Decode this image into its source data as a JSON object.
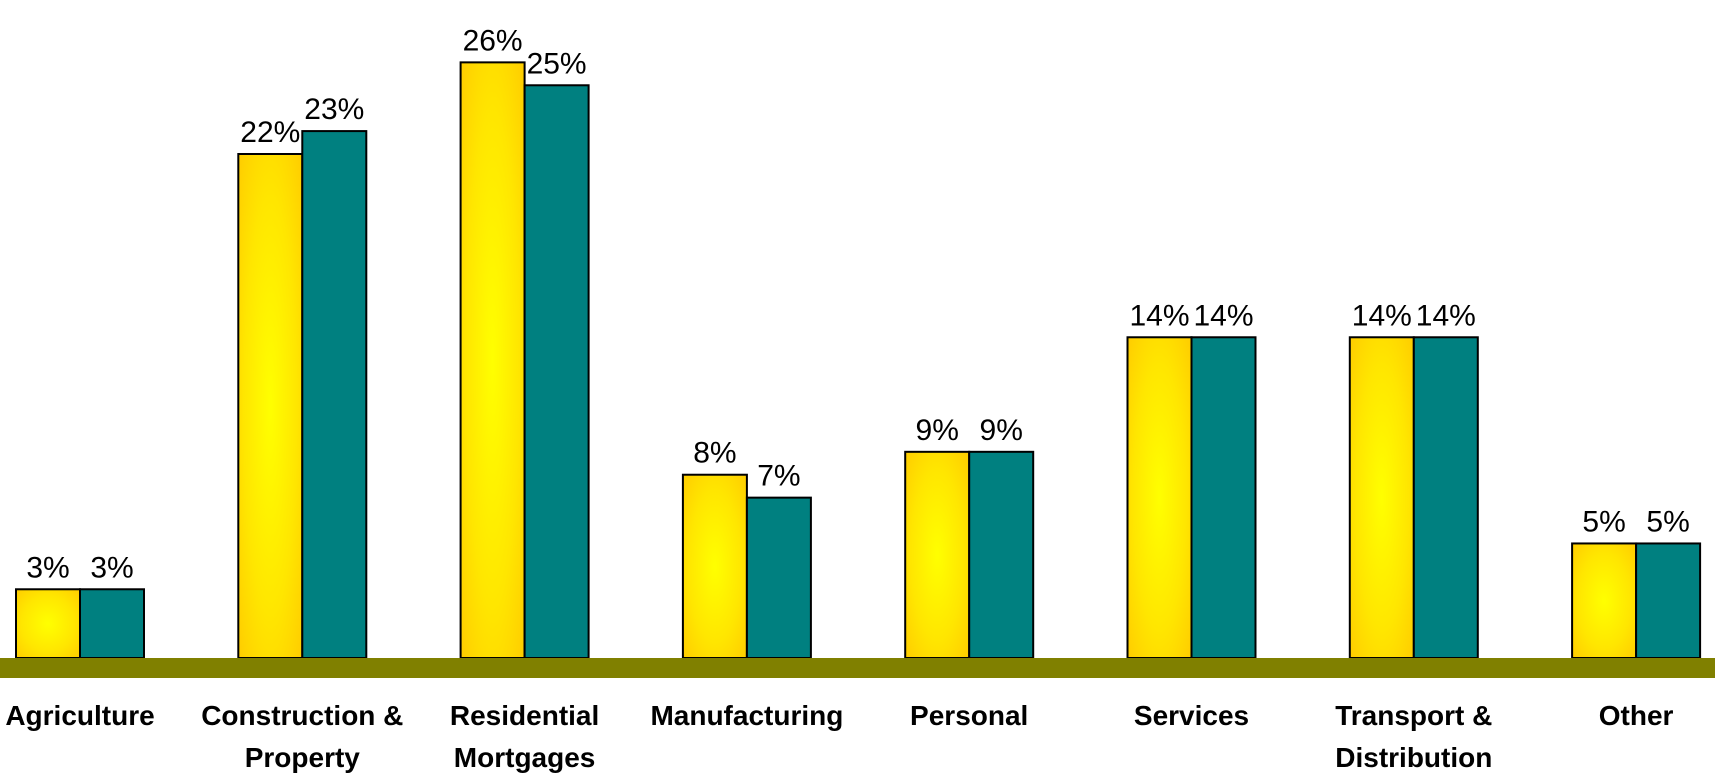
{
  "chart_data": {
    "type": "bar",
    "title": "",
    "xlabel": "",
    "ylabel": "",
    "ylim": [
      0,
      27.5
    ],
    "grid": false,
    "legend": "none",
    "categories": [
      [
        "Agriculture"
      ],
      [
        "Construction &",
        "Property"
      ],
      [
        "Residential",
        "Mortgages"
      ],
      [
        "Manufacturing"
      ],
      [
        "Personal"
      ],
      [
        "Services"
      ],
      [
        "Transport &",
        "Distribution"
      ],
      [
        "Other"
      ]
    ],
    "series": [
      {
        "values": [
          3,
          22,
          26,
          8,
          9,
          14,
          14,
          5
        ],
        "labels": [
          "3%",
          "22%",
          "26%",
          "8%",
          "9%",
          "14%",
          "14%",
          "5%"
        ],
        "color": "#ffd700"
      },
      {
        "values": [
          3,
          23,
          25,
          7,
          9,
          14,
          14,
          5
        ],
        "labels": [
          "3%",
          "23%",
          "25%",
          "7%",
          "9%",
          "14%",
          "14%",
          "5%"
        ],
        "color": "#008080"
      }
    ],
    "floor_color": "#808000"
  }
}
